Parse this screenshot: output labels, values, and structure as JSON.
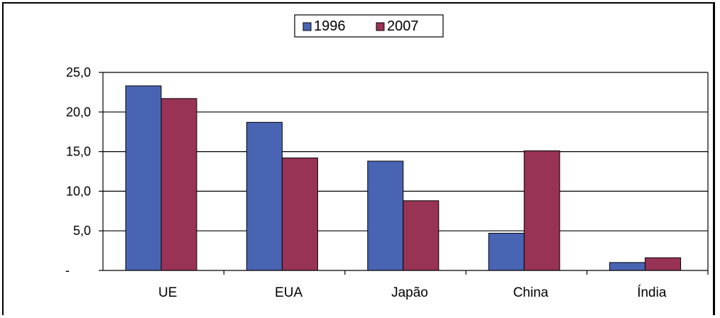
{
  "chart_data": {
    "type": "bar",
    "categories": [
      "UE",
      "EUA",
      "Japão",
      "China",
      "Índia"
    ],
    "series": [
      {
        "name": "1996",
        "values": [
          23.3,
          18.7,
          13.8,
          4.7,
          1.0
        ],
        "color": "#4a64b4"
      },
      {
        "name": "2007",
        "values": [
          21.7,
          14.2,
          8.8,
          15.1,
          1.6
        ],
        "color": "#993355"
      }
    ],
    "yticks": [
      {
        "value": 0,
        "label": "-"
      },
      {
        "value": 5,
        "label": "5,0"
      },
      {
        "value": 10,
        "label": "10,0"
      },
      {
        "value": 15,
        "label": "15,0"
      },
      {
        "value": 20,
        "label": "20,0"
      },
      {
        "value": 25,
        "label": "25,0"
      }
    ],
    "ylim": [
      0,
      25
    ],
    "grid": true,
    "legend": "top-center",
    "title": "",
    "xlabel": "",
    "ylabel": ""
  }
}
